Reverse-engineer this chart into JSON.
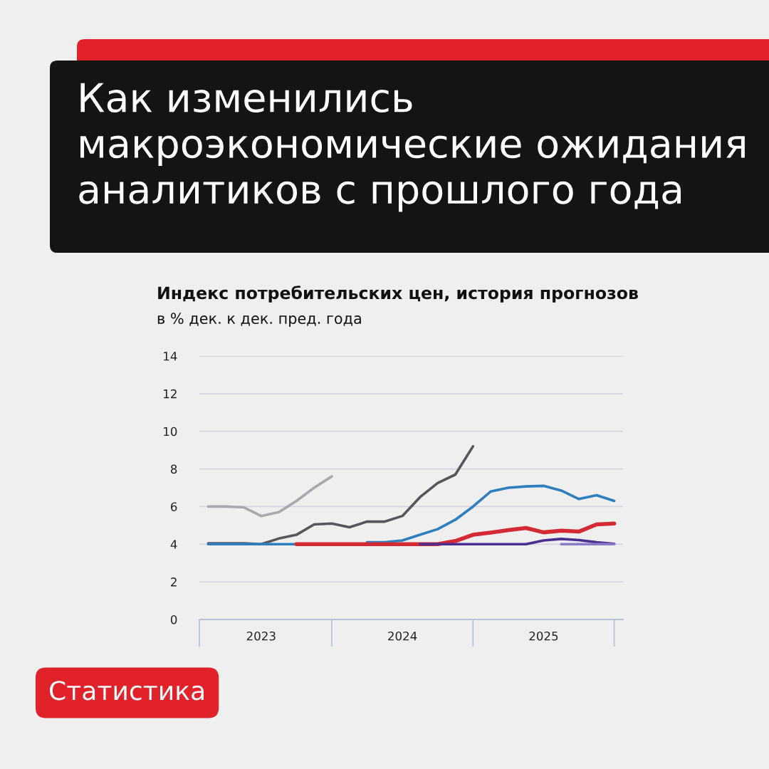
{
  "chart_data": {
    "type": "line",
    "title": "Как изменились макроэкономические ожидания аналитиков с прошлого года",
    "subtitle": "Индекс потребительских цен, история прогнозов",
    "ylabel": "в % дек. к дек. пред. года",
    "annotations": [
      "Статистика"
    ],
    "categories": [
      null,
      null,
      null,
      "2023",
      null,
      null,
      null,
      null,
      null,
      null,
      null,
      "2024",
      null,
      null,
      null,
      null,
      null,
      null,
      null,
      "2025",
      null,
      null,
      null,
      null
    ],
    "series": [
      {
        "color": "#a8a9ae",
        "values": [
          6.0,
          6.0,
          5.96,
          5.5,
          5.7,
          6.3,
          7.0,
          7.6,
          null,
          null,
          null,
          null,
          null,
          null,
          null,
          null,
          null,
          null,
          null,
          null,
          null,
          null,
          null,
          null
        ]
      },
      {
        "color": "#55575c",
        "values": [
          4.05,
          4.05,
          4.05,
          4.0,
          4.3,
          4.5,
          5.05,
          5.1,
          4.9,
          5.2,
          5.2,
          5.5,
          6.5,
          7.25,
          7.7,
          9.2,
          null,
          null,
          null,
          null,
          null,
          null,
          null,
          null
        ]
      },
      {
        "color": "#2e7fc0",
        "values": [
          4.0,
          4.0,
          4.0,
          4.0,
          4.0,
          4.0,
          null,
          null,
          null,
          4.1,
          4.1,
          4.2,
          4.5,
          4.8,
          5.3,
          6.0,
          6.8,
          7.0,
          7.07,
          7.1,
          6.85,
          6.4,
          6.6,
          6.3
        ]
      },
      {
        "color": "#d32a33",
        "values": [
          null,
          null,
          null,
          null,
          null,
          4.0,
          4.0,
          4.0,
          4.0,
          4.0,
          4.0,
          4.0,
          4.0,
          4.0,
          4.17,
          4.5,
          4.62,
          4.75,
          4.86,
          4.63,
          4.72,
          4.67,
          5.05,
          5.1
        ]
      },
      {
        "color": "#4a2f91",
        "values": [
          null,
          null,
          null,
          null,
          null,
          null,
          null,
          null,
          null,
          null,
          null,
          null,
          4.0,
          4.0,
          4.0,
          4.0,
          4.0,
          4.0,
          4.0,
          4.2,
          4.28,
          4.22,
          4.1,
          4.02
        ]
      },
      {
        "color": "#8c7cc8",
        "values": [
          null,
          null,
          null,
          null,
          null,
          null,
          null,
          null,
          null,
          null,
          null,
          null,
          null,
          null,
          null,
          null,
          null,
          null,
          null,
          null,
          4.0,
          4.0,
          4.0,
          4.0
        ]
      }
    ],
    "ylim": [
      0,
      14
    ],
    "yticks": [
      0,
      2,
      4,
      6,
      8,
      10,
      12,
      14
    ],
    "grid": "y"
  }
}
